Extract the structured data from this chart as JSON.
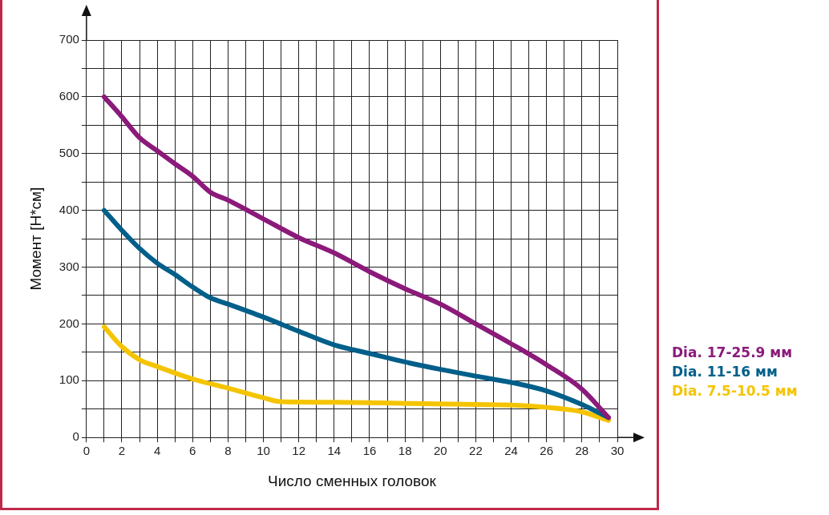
{
  "chart_data": {
    "type": "line",
    "xlabel": "Число сменных головок",
    "ylabel": "Момент [Н*см]",
    "xlim": [
      0,
      30
    ],
    "ylim": [
      0,
      700
    ],
    "xticks": [
      0,
      {
        "value": 1,
        "label": null
      },
      2,
      {
        "value": 3,
        "label": null
      },
      4,
      {
        "value": 5,
        "label": null
      },
      6,
      {
        "value": 7,
        "label": null
      },
      8,
      {
        "value": 9,
        "label": null
      },
      10,
      {
        "value": 11,
        "label": null
      },
      12,
      {
        "value": 13,
        "label": null
      },
      14,
      {
        "value": 15,
        "label": null
      },
      16,
      {
        "value": 17,
        "label": null
      },
      18,
      {
        "value": 19,
        "label": null
      },
      20,
      {
        "value": 21,
        "label": null
      },
      22,
      {
        "value": 23,
        "label": null
      },
      24,
      {
        "value": 25,
        "label": null
      },
      26,
      {
        "value": 27,
        "label": null
      },
      28,
      {
        "value": 29,
        "label": null
      },
      30
    ],
    "yticks": [
      0,
      {
        "value": 50,
        "label": null
      },
      100,
      {
        "value": 150,
        "label": null
      },
      200,
      {
        "value": 250,
        "label": null
      },
      300,
      {
        "value": 350,
        "label": null
      },
      400,
      {
        "value": 450,
        "label": null
      },
      500,
      {
        "value": 550,
        "label": null
      },
      600,
      {
        "value": 650,
        "label": null
      },
      700
    ],
    "grid": true,
    "legend": "right",
    "marker": "none",
    "line_style": "solid",
    "series": [
      {
        "name": "Dia. 17-25.9 мм",
        "color": "#8b1a7a",
        "x": [
          1,
          2,
          3,
          4,
          5,
          6,
          7,
          8,
          10,
          12,
          14,
          16,
          18,
          20,
          22,
          24,
          26,
          28,
          29.5
        ],
        "values": [
          600,
          565,
          528,
          505,
          482,
          460,
          432,
          418,
          385,
          352,
          325,
          292,
          262,
          235,
          200,
          165,
          128,
          85,
          35
        ]
      },
      {
        "name": "Dia. 11-16 мм",
        "color": "#005f8a",
        "x": [
          1,
          2,
          3,
          4,
          5,
          6,
          7,
          8,
          10,
          12,
          14,
          16,
          18,
          20,
          22,
          24,
          26,
          28,
          29.5
        ],
        "values": [
          400,
          365,
          333,
          307,
          287,
          265,
          246,
          235,
          212,
          187,
          163,
          148,
          133,
          120,
          108,
          97,
          82,
          58,
          35
        ]
      },
      {
        "name": "Dia. 7.5-10.5 мм",
        "color": "#f5c400",
        "x": [
          1,
          2,
          3,
          4,
          6,
          8,
          10,
          11,
          14,
          18,
          22,
          24,
          26,
          28,
          29.5
        ],
        "values": [
          195,
          160,
          137,
          125,
          103,
          87,
          70,
          63,
          62,
          60,
          58,
          57,
          53,
          45,
          30
        ]
      }
    ]
  }
}
